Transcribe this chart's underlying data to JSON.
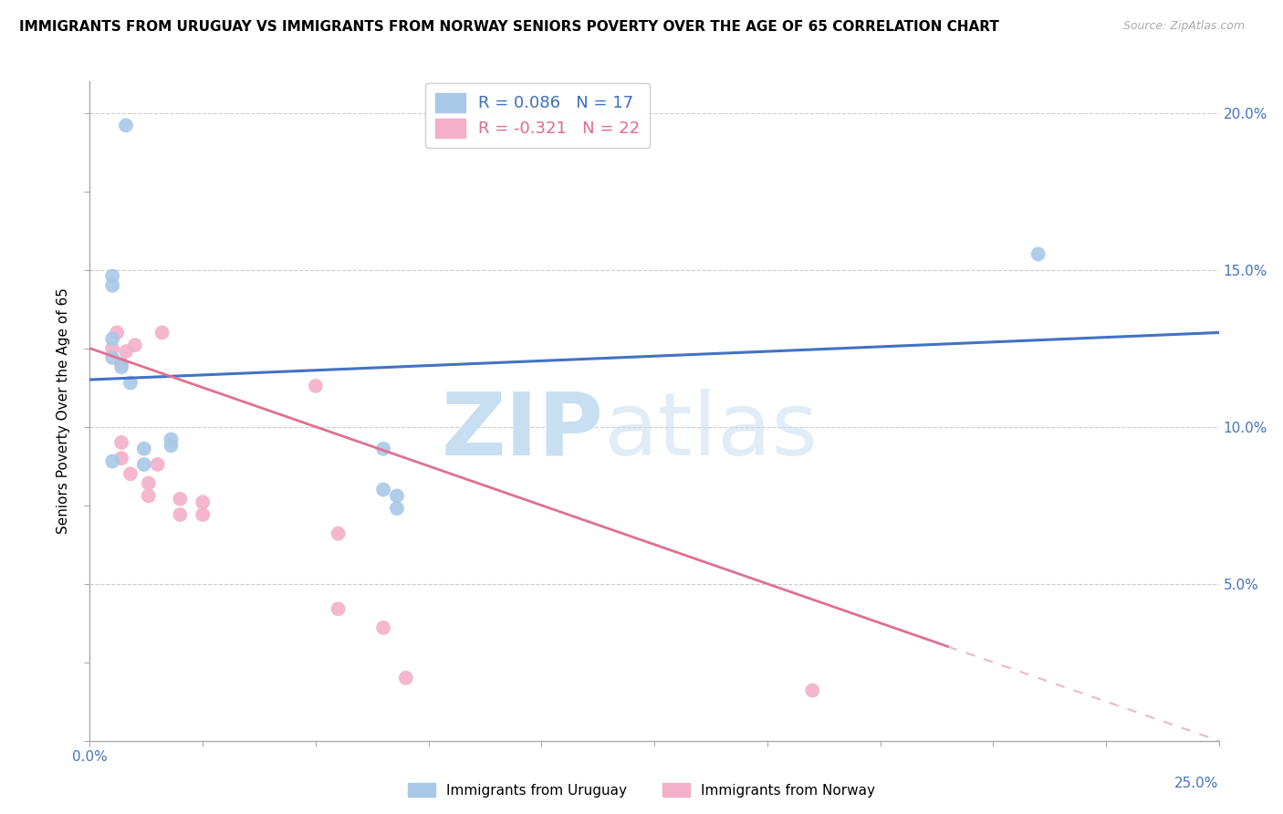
{
  "title": "IMMIGRANTS FROM URUGUAY VS IMMIGRANTS FROM NORWAY SENIORS POVERTY OVER THE AGE OF 65 CORRELATION CHART",
  "source": "Source: ZipAtlas.com",
  "ylabel": "Seniors Poverty Over the Age of 65",
  "xlim": [
    0.0,
    0.25
  ],
  "ylim": [
    0.0,
    0.21
  ],
  "uruguay_x": [
    0.008,
    0.005,
    0.005,
    0.005,
    0.005,
    0.007,
    0.009,
    0.012,
    0.012,
    0.018,
    0.018,
    0.065,
    0.065,
    0.068,
    0.068,
    0.21,
    0.005
  ],
  "uruguay_y": [
    0.196,
    0.145,
    0.148,
    0.128,
    0.122,
    0.119,
    0.114,
    0.093,
    0.088,
    0.094,
    0.096,
    0.093,
    0.08,
    0.078,
    0.074,
    0.155,
    0.089
  ],
  "norway_x": [
    0.005,
    0.006,
    0.007,
    0.007,
    0.007,
    0.008,
    0.009,
    0.01,
    0.013,
    0.013,
    0.015,
    0.016,
    0.02,
    0.02,
    0.025,
    0.025,
    0.05,
    0.055,
    0.055,
    0.065,
    0.07,
    0.16
  ],
  "norway_y": [
    0.125,
    0.13,
    0.12,
    0.095,
    0.09,
    0.124,
    0.085,
    0.126,
    0.082,
    0.078,
    0.088,
    0.13,
    0.077,
    0.072,
    0.076,
    0.072,
    0.113,
    0.066,
    0.042,
    0.036,
    0.02,
    0.016
  ],
  "uruguay_R": 0.086,
  "uruguay_N": 17,
  "norway_R": -0.321,
  "norway_N": 22,
  "uruguay_color": "#a8c8e8",
  "norway_color": "#f4b0c8",
  "uruguay_line_color": "#4472c4",
  "norway_line_color": "#e07090",
  "norway_line_solid_end": 0.19,
  "background_color": "#ffffff",
  "grid_color": "#cccccc",
  "axis_color": "#aaaaaa",
  "tick_label_color": "#4472c4",
  "title_fontsize": 11,
  "axis_label_fontsize": 11,
  "tick_fontsize": 11
}
